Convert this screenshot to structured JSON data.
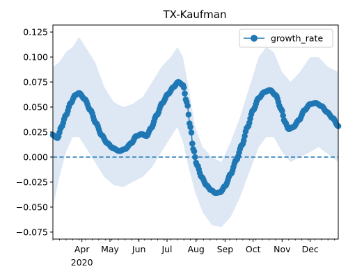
{
  "chart_data": {
    "type": "line",
    "title": "TX-Kaufman",
    "xlabel": "",
    "ylabel": "",
    "x_axis": {
      "start": "2020-03-01",
      "end": "2020-12-31",
      "ticks": [
        {
          "date": "2020-04-01",
          "label": "Apr"
        },
        {
          "date": "2020-05-01",
          "label": "May"
        },
        {
          "date": "2020-06-01",
          "label": "Jun"
        },
        {
          "date": "2020-07-01",
          "label": "Jul"
        },
        {
          "date": "2020-08-01",
          "label": "Aug"
        },
        {
          "date": "2020-09-01",
          "label": "Sep"
        },
        {
          "date": "2020-10-01",
          "label": "Oct"
        },
        {
          "date": "2020-11-01",
          "label": "Nov"
        },
        {
          "date": "2020-12-01",
          "label": "Dec"
        }
      ],
      "year_label": "2020"
    },
    "ylim": [
      -0.082,
      0.132
    ],
    "yticks": [
      -0.075,
      -0.05,
      -0.025,
      0.0,
      0.025,
      0.05,
      0.075,
      0.1,
      0.125
    ],
    "ytick_labels": [
      "−0.075",
      "−0.050",
      "−0.025",
      "0.000",
      "0.025",
      "0.050",
      "0.075",
      "0.100",
      "0.125"
    ],
    "grid": false,
    "legend": {
      "position": "top-right",
      "entries": [
        "growth_rate"
      ]
    },
    "reference_line": {
      "y": 0.0,
      "style": "dashed"
    },
    "series": [
      {
        "name": "growth_rate",
        "color": "#1f77b4",
        "marker": "circle",
        "points": [
          [
            "2020-03-01",
            0.022
          ],
          [
            "2020-03-06",
            0.019
          ],
          [
            "2020-03-10",
            0.03
          ],
          [
            "2020-03-15",
            0.042
          ],
          [
            "2020-03-20",
            0.054
          ],
          [
            "2020-03-25",
            0.062
          ],
          [
            "2020-03-29",
            0.064
          ],
          [
            "2020-04-04",
            0.058
          ],
          [
            "2020-04-10",
            0.047
          ],
          [
            "2020-04-16",
            0.034
          ],
          [
            "2020-04-22",
            0.022
          ],
          [
            "2020-04-28",
            0.014
          ],
          [
            "2020-05-04",
            0.009
          ],
          [
            "2020-05-11",
            0.006
          ],
          [
            "2020-05-17",
            0.008
          ],
          [
            "2020-05-24",
            0.014
          ],
          [
            "2020-05-29",
            0.021
          ],
          [
            "2020-06-04",
            0.023
          ],
          [
            "2020-06-09",
            0.021
          ],
          [
            "2020-06-14",
            0.029
          ],
          [
            "2020-06-20",
            0.042
          ],
          [
            "2020-06-26",
            0.054
          ],
          [
            "2020-07-02",
            0.063
          ],
          [
            "2020-07-08",
            0.07
          ],
          [
            "2020-07-13",
            0.075
          ],
          [
            "2020-07-18",
            0.072
          ],
          [
            "2020-07-22",
            0.055
          ],
          [
            "2020-07-26",
            0.03
          ],
          [
            "2020-07-29",
            0.008
          ],
          [
            "2020-08-02",
            -0.008
          ],
          [
            "2020-08-07",
            -0.02
          ],
          [
            "2020-08-12",
            -0.028
          ],
          [
            "2020-08-17",
            -0.033
          ],
          [
            "2020-08-22",
            -0.036
          ],
          [
            "2020-08-27",
            -0.035
          ],
          [
            "2020-09-01",
            -0.029
          ],
          [
            "2020-09-07",
            -0.017
          ],
          [
            "2020-09-13",
            -0.003
          ],
          [
            "2020-09-19",
            0.012
          ],
          [
            "2020-09-25",
            0.03
          ],
          [
            "2020-10-01",
            0.047
          ],
          [
            "2020-10-07",
            0.059
          ],
          [
            "2020-10-13",
            0.065
          ],
          [
            "2020-10-19",
            0.067
          ],
          [
            "2020-10-25",
            0.062
          ],
          [
            "2020-10-31",
            0.048
          ],
          [
            "2020-11-04",
            0.035
          ],
          [
            "2020-11-08",
            0.028
          ],
          [
            "2020-11-13",
            0.03
          ],
          [
            "2020-11-19",
            0.037
          ],
          [
            "2020-11-25",
            0.047
          ],
          [
            "2020-12-01",
            0.053
          ],
          [
            "2020-12-07",
            0.054
          ],
          [
            "2020-12-13",
            0.051
          ],
          [
            "2020-12-19",
            0.045
          ],
          [
            "2020-12-25",
            0.039
          ],
          [
            "2020-12-31",
            0.031
          ]
        ],
        "band": [
          [
            "2020-03-01",
            -0.05,
            0.09
          ],
          [
            "2020-03-08",
            -0.02,
            0.095
          ],
          [
            "2020-03-15",
            0.005,
            0.105
          ],
          [
            "2020-03-22",
            0.02,
            0.11
          ],
          [
            "2020-03-29",
            0.02,
            0.12
          ],
          [
            "2020-04-05",
            0.01,
            0.11
          ],
          [
            "2020-04-15",
            -0.005,
            0.095
          ],
          [
            "2020-04-25",
            -0.02,
            0.07
          ],
          [
            "2020-05-05",
            -0.028,
            0.055
          ],
          [
            "2020-05-15",
            -0.03,
            0.05
          ],
          [
            "2020-05-25",
            -0.025,
            0.053
          ],
          [
            "2020-06-05",
            -0.02,
            0.06
          ],
          [
            "2020-06-15",
            -0.01,
            0.075
          ],
          [
            "2020-06-25",
            0.005,
            0.09
          ],
          [
            "2020-07-05",
            0.02,
            0.1
          ],
          [
            "2020-07-12",
            0.03,
            0.11
          ],
          [
            "2020-07-18",
            0.015,
            0.1
          ],
          [
            "2020-07-24",
            -0.01,
            0.07
          ],
          [
            "2020-07-31",
            -0.035,
            0.03
          ],
          [
            "2020-08-08",
            -0.055,
            0.01
          ],
          [
            "2020-08-18",
            -0.068,
            0.0
          ],
          [
            "2020-08-28",
            -0.07,
            -0.005
          ],
          [
            "2020-09-07",
            -0.06,
            0.015
          ],
          [
            "2020-09-17",
            -0.04,
            0.04
          ],
          [
            "2020-09-27",
            -0.015,
            0.07
          ],
          [
            "2020-10-07",
            0.01,
            0.1
          ],
          [
            "2020-10-15",
            0.02,
            0.11
          ],
          [
            "2020-10-23",
            0.02,
            0.105
          ],
          [
            "2020-11-01",
            0.005,
            0.085
          ],
          [
            "2020-11-10",
            -0.005,
            0.075
          ],
          [
            "2020-11-20",
            0.0,
            0.085
          ],
          [
            "2020-12-01",
            0.005,
            0.1
          ],
          [
            "2020-12-10",
            0.01,
            0.1
          ],
          [
            "2020-12-20",
            0.003,
            0.09
          ],
          [
            "2020-12-31",
            -0.005,
            0.085
          ]
        ],
        "band_color": "#dde8f4"
      }
    ]
  }
}
